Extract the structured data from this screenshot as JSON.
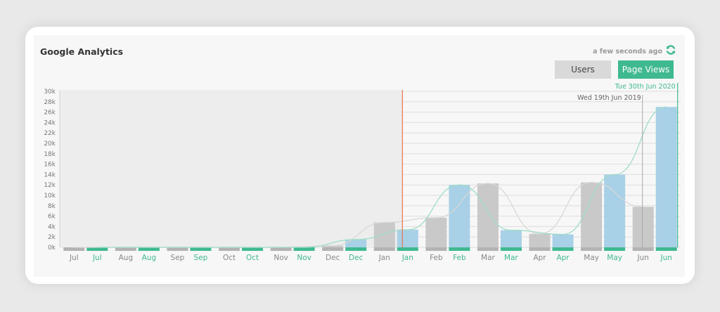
{
  "widget": {
    "title": "Google Analytics",
    "updated_text": "a few seconds ago",
    "refresh_icon": "refresh-icon",
    "buttons": {
      "users": "Users",
      "page_views": "Page Views"
    },
    "active_button": "page_views"
  },
  "colors": {
    "previous_bar": "#c9c9c9",
    "current_bar": "#a8d0e6",
    "previous_base": "#b3b3b3",
    "current_base": "#3fb990",
    "previous_line": "#d8d8d8",
    "current_line": "#9fdcc8",
    "marker_orange": "#e8744f",
    "marker_green": "#3fb990",
    "marker_gray": "#aaaaaa",
    "shade": "#ededed"
  },
  "chart_data": {
    "type": "bar",
    "y_ticks": [
      "0k",
      "2k",
      "4k",
      "6k",
      "8k",
      "10k",
      "12k",
      "14k",
      "16k",
      "18k",
      "20k",
      "22k",
      "24k",
      "26k",
      "28k",
      "30k"
    ],
    "ylim": [
      0,
      30000
    ],
    "categories": [
      "Jul",
      "Aug",
      "Sep",
      "Oct",
      "Nov",
      "Dec",
      "Jan",
      "Feb",
      "Mar",
      "Apr",
      "May",
      "Jun"
    ],
    "series": [
      {
        "values": [
          0,
          0,
          0,
          0,
          0,
          300,
          4800,
          5700,
          12300,
          2600,
          12500,
          7800
        ]
      },
      {
        "values": [
          0,
          0,
          0,
          0,
          0,
          1500,
          3400,
          12000,
          3300,
          2500,
          14000,
          27000
        ]
      }
    ],
    "markers": [
      {
        "label": "Tue 30th Jun 2020"
      },
      {
        "label": "Wed 19th Jun 2019"
      }
    ],
    "grid": true,
    "legend": "none"
  }
}
